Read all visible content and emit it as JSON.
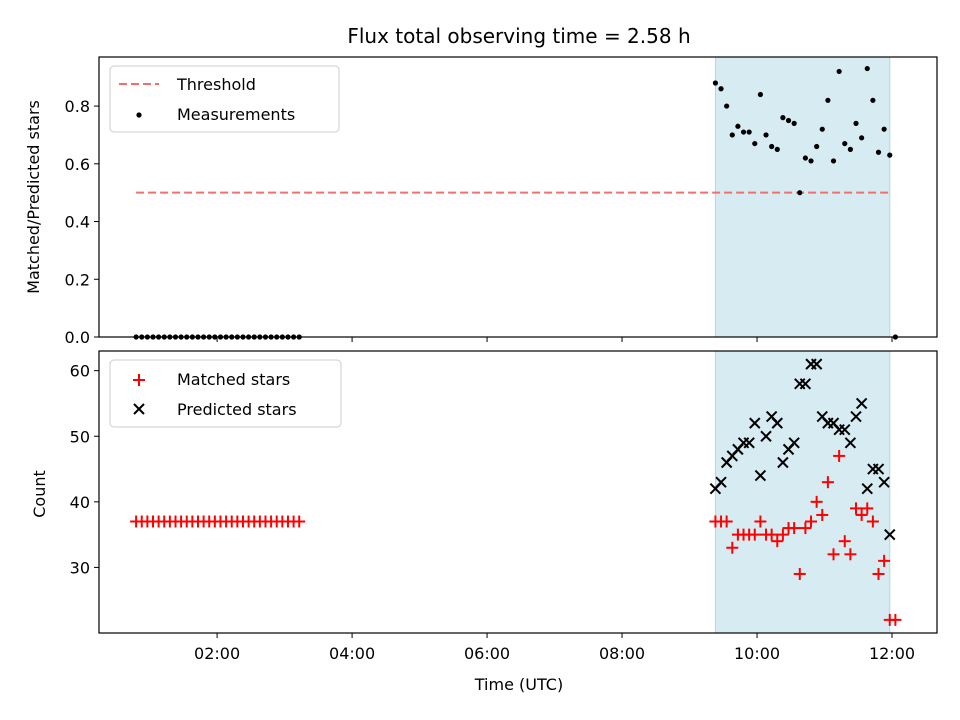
{
  "chart_data": [
    {
      "type": "scatter",
      "title": "Flux total observing time = 2.58 h",
      "xlabel": "",
      "ylabel": "Matched/Predicted stars",
      "xlim": [
        "00:15",
        "12:40"
      ],
      "ylim": [
        0,
        0.97
      ],
      "y_ticks": [
        "0.0",
        "0.2",
        "0.4",
        "0.6",
        "0.8"
      ],
      "y_tick_values": [
        0,
        0.2,
        0.4,
        0.6,
        0.8
      ],
      "x_ticks": [
        "02:00",
        "04:00",
        "06:00",
        "08:00",
        "10:00",
        "12:00"
      ],
      "x_tick_values": [
        "02:00",
        "04:00",
        "06:00",
        "08:00",
        "10:00",
        "12:00"
      ],
      "show_x_tick_labels": false,
      "shaded_span": {
        "from": "09:23",
        "to": "11:58",
        "color": "#add8e6"
      },
      "threshold": {
        "label": "Threshold",
        "from": "00:48",
        "to": "11:58",
        "value": 0.5,
        "color": "#f07070"
      },
      "legend": {
        "position": "top-left",
        "entries": [
          "Threshold",
          "Measurements"
        ]
      },
      "series": [
        {
          "name": "Measurements",
          "color": "#000000",
          "marker": "dot",
          "x": [
            "00:48",
            "00:53",
            "00:58",
            "01:03",
            "01:08",
            "01:13",
            "01:18",
            "01:23",
            "01:28",
            "01:33",
            "01:38",
            "01:43",
            "01:48",
            "01:53",
            "01:58",
            "02:03",
            "02:08",
            "02:13",
            "02:18",
            "02:23",
            "02:28",
            "02:33",
            "02:38",
            "02:43",
            "02:48",
            "02:53",
            "02:58",
            "03:03",
            "03:08",
            "03:13",
            "09:23",
            "09:28",
            "09:33",
            "09:38",
            "09:43",
            "09:48",
            "09:53",
            "09:58",
            "10:03",
            "10:08",
            "10:13",
            "10:18",
            "10:23",
            "10:28",
            "10:33",
            "10:38",
            "10:43",
            "10:48",
            "10:53",
            "10:58",
            "11:03",
            "11:08",
            "11:13",
            "11:18",
            "11:23",
            "11:28",
            "11:33",
            "11:38",
            "11:43",
            "11:48",
            "11:53",
            "11:58",
            "12:03"
          ],
          "y": [
            0,
            0,
            0,
            0,
            0,
            0,
            0,
            0,
            0,
            0,
            0,
            0,
            0,
            0,
            0,
            0,
            0,
            0,
            0,
            0,
            0,
            0,
            0,
            0,
            0,
            0,
            0,
            0,
            0,
            0,
            0.88,
            0.86,
            0.8,
            0.7,
            0.73,
            0.71,
            0.71,
            0.67,
            0.84,
            0.7,
            0.66,
            0.65,
            0.76,
            0.75,
            0.74,
            0.5,
            0.62,
            0.61,
            0.66,
            0.72,
            0.82,
            0.61,
            0.92,
            0.67,
            0.65,
            0.74,
            0.69,
            0.93,
            0.82,
            0.64,
            0.72,
            0.63,
            0
          ]
        }
      ]
    },
    {
      "type": "scatter",
      "title": "",
      "xlabel": "Time (UTC)",
      "ylabel": "Count",
      "xlim": [
        "00:15",
        "12:40"
      ],
      "ylim": [
        20,
        63
      ],
      "y_ticks": [
        "30",
        "40",
        "50",
        "60"
      ],
      "y_tick_values": [
        30,
        40,
        50,
        60
      ],
      "x_ticks": [
        "02:00",
        "04:00",
        "06:00",
        "08:00",
        "10:00",
        "12:00"
      ],
      "x_tick_values": [
        "02:00",
        "04:00",
        "06:00",
        "08:00",
        "10:00",
        "12:00"
      ],
      "show_x_tick_labels": true,
      "shaded_span": {
        "from": "09:23",
        "to": "11:58",
        "color": "#add8e6"
      },
      "legend": {
        "position": "top-left",
        "entries": [
          "Matched stars",
          "Predicted stars"
        ]
      },
      "series": [
        {
          "name": "Matched stars",
          "color": "#ff0000",
          "marker": "plus",
          "x": [
            "00:48",
            "00:53",
            "00:58",
            "01:03",
            "01:08",
            "01:13",
            "01:18",
            "01:23",
            "01:28",
            "01:33",
            "01:38",
            "01:43",
            "01:48",
            "01:53",
            "01:58",
            "02:03",
            "02:08",
            "02:13",
            "02:18",
            "02:23",
            "02:28",
            "02:33",
            "02:38",
            "02:43",
            "02:48",
            "02:53",
            "02:58",
            "03:03",
            "03:08",
            "03:13",
            "09:23",
            "09:28",
            "09:33",
            "09:38",
            "09:43",
            "09:48",
            "09:53",
            "09:58",
            "10:03",
            "10:08",
            "10:13",
            "10:18",
            "10:23",
            "10:28",
            "10:33",
            "10:38",
            "10:43",
            "10:48",
            "10:53",
            "10:58",
            "11:03",
            "11:08",
            "11:13",
            "11:18",
            "11:23",
            "11:28",
            "11:33",
            "11:38",
            "11:43",
            "11:48",
            "11:53",
            "11:58",
            "12:03"
          ],
          "y": [
            37,
            37,
            37,
            37,
            37,
            37,
            37,
            37,
            37,
            37,
            37,
            37,
            37,
            37,
            37,
            37,
            37,
            37,
            37,
            37,
            37,
            37,
            37,
            37,
            37,
            37,
            37,
            37,
            37,
            37,
            37,
            37,
            37,
            33,
            35,
            35,
            35,
            35,
            37,
            35,
            35,
            34,
            35,
            36,
            36,
            29,
            36,
            37,
            40,
            38,
            43,
            32,
            47,
            34,
            32,
            39,
            38,
            39,
            37,
            29,
            31,
            22,
            22
          ]
        },
        {
          "name": "Predicted stars",
          "color": "#000000",
          "marker": "x",
          "x": [
            "09:23",
            "09:28",
            "09:33",
            "09:38",
            "09:43",
            "09:48",
            "09:53",
            "09:58",
            "10:03",
            "10:08",
            "10:13",
            "10:18",
            "10:23",
            "10:28",
            "10:33",
            "10:38",
            "10:43",
            "10:48",
            "10:53",
            "10:58",
            "11:03",
            "11:08",
            "11:13",
            "11:18",
            "11:23",
            "11:28",
            "11:33",
            "11:38",
            "11:43",
            "11:48",
            "11:53",
            "11:58"
          ],
          "y": [
            42,
            43,
            46,
            47,
            48,
            49,
            49,
            52,
            44,
            50,
            53,
            52,
            46,
            48,
            49,
            58,
            58,
            61,
            61,
            53,
            52,
            52,
            51,
            51,
            49,
            53,
            55,
            42,
            45,
            45,
            43,
            35
          ]
        }
      ]
    }
  ]
}
